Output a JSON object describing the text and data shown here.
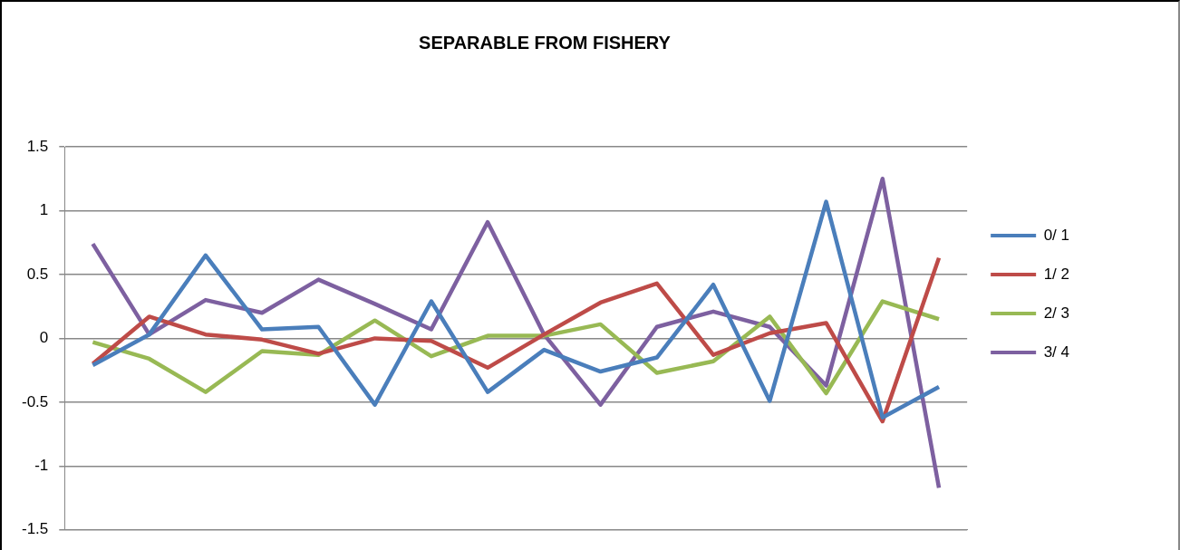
{
  "chart_data": {
    "type": "line",
    "title": "SEPARABLE FROM FISHERY",
    "categories": [
      null,
      null,
      null,
      null,
      null,
      null,
      null,
      null,
      null,
      null,
      null,
      null,
      null,
      null,
      null,
      null
    ],
    "series": [
      {
        "name": "0/ 1",
        "color": "#4a7ebb",
        "values": [
          -0.21,
          0.03,
          0.65,
          0.07,
          0.09,
          -0.52,
          0.29,
          -0.42,
          -0.09,
          -0.26,
          -0.15,
          0.42,
          -0.49,
          1.07,
          -0.62,
          -0.38
        ]
      },
      {
        "name": "1/ 2",
        "color": "#be4b48",
        "values": [
          -0.2,
          0.17,
          0.03,
          -0.01,
          -0.12,
          0.0,
          -0.02,
          -0.23,
          0.03,
          0.28,
          0.43,
          -0.13,
          0.04,
          0.12,
          -0.65,
          0.63
        ]
      },
      {
        "name": "2/ 3",
        "color": "#98b954",
        "values": [
          -0.03,
          -0.16,
          -0.42,
          -0.1,
          -0.13,
          0.14,
          -0.14,
          0.02,
          0.02,
          0.11,
          -0.27,
          -0.18,
          0.17,
          -0.43,
          0.29,
          0.15
        ]
      },
      {
        "name": "3/ 4",
        "color": "#7d60a0",
        "values": [
          0.74,
          0.03,
          0.3,
          0.2,
          0.46,
          0.27,
          0.07,
          0.91,
          0.03,
          -0.52,
          0.09,
          0.21,
          0.09,
          -0.37,
          1.25,
          -1.17
        ]
      }
    ],
    "ylim": [
      -1.5,
      1.5
    ],
    "yticks": [
      -1.5,
      -1,
      -0.5,
      0,
      0.5,
      1,
      1.5
    ],
    "grid": "y",
    "legend": "right",
    "marker": "none"
  }
}
